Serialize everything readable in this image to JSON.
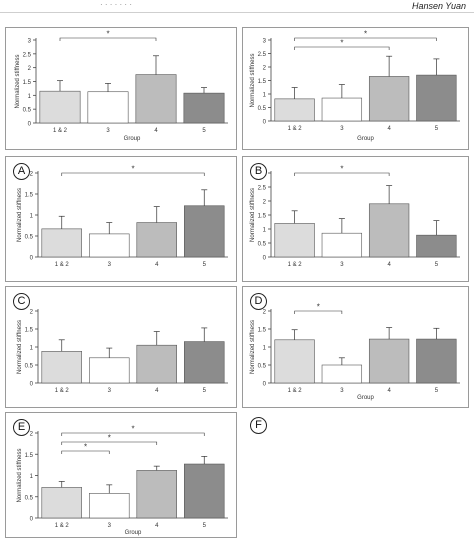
{
  "header": {
    "author": "Hansen Yuan",
    "dots": "·     ·     ·     ·     ·     ·     ·"
  },
  "chart_data": [
    {
      "id": "top-left",
      "type": "bar",
      "badge": "",
      "categories": [
        "1 & 2",
        "3",
        "4",
        "5"
      ],
      "values": [
        1.15,
        1.13,
        1.75,
        1.08
      ],
      "errors": [
        0.38,
        0.3,
        0.68,
        0.2
      ],
      "colors": [
        "#dcdcdc",
        "#ffffff",
        "#bcbcbc",
        "#8c8c8c"
      ],
      "ylim": [
        0,
        3
      ],
      "yticks": [
        0,
        0.5,
        1,
        1.5,
        2,
        2.5,
        3
      ],
      "ylabel": "Normalized stiffness",
      "xlabel": "Group",
      "significance": [
        {
          "from": 0,
          "to": 2,
          "label": "*"
        }
      ]
    },
    {
      "id": "top-right",
      "type": "bar",
      "badge": "",
      "categories": [
        "1 & 2",
        "3",
        "4",
        "5"
      ],
      "values": [
        0.82,
        0.85,
        1.65,
        1.7
      ],
      "errors": [
        0.42,
        0.5,
        0.75,
        0.6
      ],
      "colors": [
        "#dcdcdc",
        "#ffffff",
        "#bcbcbc",
        "#8c8c8c"
      ],
      "ylim": [
        0,
        3
      ],
      "yticks": [
        0,
        0.5,
        1,
        1.5,
        2,
        2.5,
        3
      ],
      "ylabel": "Normalized stiffness",
      "xlabel": "Group",
      "significance": [
        {
          "from": 0,
          "to": 3,
          "label": "*"
        },
        {
          "from": 0,
          "to": 2,
          "label": "*"
        }
      ]
    },
    {
      "id": "A",
      "type": "bar",
      "badge": "A",
      "categories": [
        "1 & 2",
        "3",
        "4",
        "5"
      ],
      "values": [
        0.67,
        0.55,
        0.82,
        1.22
      ],
      "errors": [
        0.3,
        0.27,
        0.38,
        0.38
      ],
      "colors": [
        "#dcdcdc",
        "#ffffff",
        "#bcbcbc",
        "#8c8c8c"
      ],
      "ylim": [
        0,
        2
      ],
      "yticks": [
        0,
        0.5,
        1,
        1.5,
        2
      ],
      "ylabel": "Normalized stiffness",
      "xlabel": "",
      "significance": [
        {
          "from": 0,
          "to": 3,
          "label": "*"
        }
      ]
    },
    {
      "id": "B",
      "type": "bar",
      "badge": "B",
      "categories": [
        "1 & 2",
        "3",
        "4",
        "5"
      ],
      "values": [
        1.2,
        0.85,
        1.9,
        0.78
      ],
      "errors": [
        0.45,
        0.52,
        0.65,
        0.52
      ],
      "colors": [
        "#dcdcdc",
        "#ffffff",
        "#bcbcbc",
        "#8c8c8c"
      ],
      "ylim": [
        0,
        3
      ],
      "yticks": [
        0,
        0.5,
        1,
        1.5,
        2,
        2.5,
        3
      ],
      "ylabel": "Normalized stiffness",
      "xlabel": "",
      "significance": [
        {
          "from": 0,
          "to": 2,
          "label": "*"
        }
      ]
    },
    {
      "id": "C",
      "type": "bar",
      "badge": "C",
      "categories": [
        "1 & 2",
        "3",
        "4",
        "5"
      ],
      "values": [
        0.88,
        0.7,
        1.05,
        1.15
      ],
      "errors": [
        0.32,
        0.27,
        0.38,
        0.38
      ],
      "colors": [
        "#dcdcdc",
        "#ffffff",
        "#bcbcbc",
        "#8c8c8c"
      ],
      "ylim": [
        0,
        2
      ],
      "yticks": [
        0,
        0.5,
        1,
        1.5,
        2
      ],
      "ylabel": "Normalized stiffness",
      "xlabel": "",
      "significance": []
    },
    {
      "id": "D",
      "type": "bar",
      "badge": "D",
      "categories": [
        "1 & 2",
        "3",
        "4",
        "5"
      ],
      "values": [
        1.2,
        0.5,
        1.22,
        1.22
      ],
      "errors": [
        0.28,
        0.2,
        0.32,
        0.3
      ],
      "colors": [
        "#dcdcdc",
        "#ffffff",
        "#bcbcbc",
        "#8c8c8c"
      ],
      "ylim": [
        0,
        2
      ],
      "yticks": [
        0,
        0.5,
        1,
        1.5,
        2
      ],
      "ylabel": "Normalized stiffness",
      "xlabel": "Group",
      "significance": [
        {
          "from": 0,
          "to": 1,
          "label": "*"
        }
      ]
    },
    {
      "id": "E",
      "type": "bar",
      "badge": "E",
      "categories": [
        "1 & 2",
        "3",
        "4",
        "5"
      ],
      "values": [
        0.72,
        0.58,
        1.12,
        1.27
      ],
      "errors": [
        0.14,
        0.2,
        0.1,
        0.18
      ],
      "colors": [
        "#dcdcdc",
        "#ffffff",
        "#bcbcbc",
        "#8c8c8c"
      ],
      "ylim": [
        0,
        2
      ],
      "yticks": [
        0,
        0.5,
        1,
        1.5,
        2
      ],
      "ylabel": "Normalized stiffness",
      "xlabel": "Group",
      "significance": [
        {
          "from": 0,
          "to": 3,
          "label": "*"
        },
        {
          "from": 0,
          "to": 2,
          "label": "*"
        },
        {
          "from": 0,
          "to": 1,
          "label": "*"
        }
      ]
    }
  ],
  "empty_panel": {
    "badge": "F"
  }
}
